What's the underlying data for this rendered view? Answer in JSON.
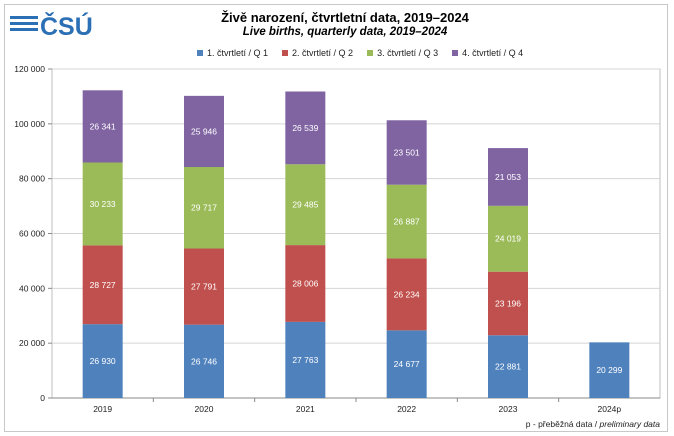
{
  "header": {
    "logo_text": "ČSÚ",
    "title_cz": "Živě narození, čtvrtletní data, 2019–2024",
    "title_en": "Live births, quarterly data, 2019–2024"
  },
  "legend": [
    {
      "label": "1. čtvrtletí / Q 1",
      "color": "#4f81bd"
    },
    {
      "label": "2. čtvrtletí / Q 2",
      "color": "#c0504d"
    },
    {
      "label": "3. čtvrtletí / Q 3",
      "color": "#9bbb59"
    },
    {
      "label": "4. čtvrtletí / Q 4",
      "color": "#8064a2"
    }
  ],
  "chart_data": {
    "type": "bar",
    "stacked": true,
    "title": "Živě narození, čtvrtletní data, 2019–2024",
    "subtitle": "Live births, quarterly data, 2019–2024",
    "categories": [
      "2019",
      "2020",
      "2021",
      "2022",
      "2023",
      "2024p"
    ],
    "series": [
      {
        "name": "1. čtvrtletí / Q 1",
        "color": "#4f81bd",
        "values": [
          26930,
          26746,
          27763,
          24677,
          22881,
          20299
        ],
        "labels": [
          "26 930",
          "26 746",
          "27 763",
          "24 677",
          "22 881",
          "20 299"
        ]
      },
      {
        "name": "2. čtvrtletí / Q 2",
        "color": "#c0504d",
        "values": [
          28727,
          27791,
          28006,
          26234,
          23196,
          null
        ],
        "labels": [
          "28 727",
          "27 791",
          "28 006",
          "26 234",
          "23 196",
          null
        ]
      },
      {
        "name": "3. čtvrtletí / Q 3",
        "color": "#9bbb59",
        "values": [
          30233,
          29717,
          29485,
          26887,
          24019,
          null
        ],
        "labels": [
          "30 233",
          "29 717",
          "29 485",
          "26 887",
          "24 019",
          null
        ]
      },
      {
        "name": "4. čtvrtletí / Q 4",
        "color": "#8064a2",
        "values": [
          26341,
          25946,
          26539,
          23501,
          21053,
          null
        ],
        "labels": [
          "26 341",
          "25 946",
          "26 539",
          "23 501",
          "21 053",
          null
        ]
      }
    ],
    "ylim": [
      0,
      120000
    ],
    "yticks": [
      0,
      20000,
      40000,
      60000,
      80000,
      100000,
      120000
    ],
    "ytick_labels": [
      "0",
      "20 000",
      "40 000",
      "60 000",
      "80 000",
      "100 000",
      "120 000"
    ],
    "grid": true,
    "legend_position": "top"
  },
  "footnote": {
    "cz": "p - přeběžná data / ",
    "en": "preliminary data"
  }
}
